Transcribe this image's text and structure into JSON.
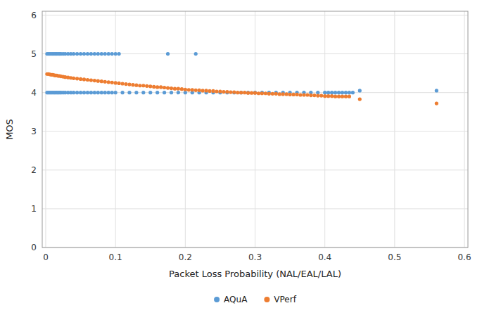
{
  "chart_data": {
    "type": "scatter",
    "xlabel": "Packet Loss Probability (NAL/EAL/LAL)",
    "ylabel": "MOS",
    "xlim": [
      -0.005,
      0.605
    ],
    "ylim": [
      0,
      6.1
    ],
    "xticks": [
      0,
      0.1,
      0.2,
      0.3,
      0.4,
      0.5,
      0.6
    ],
    "yticks": [
      0,
      1,
      2,
      3,
      4,
      5,
      6
    ],
    "grid": true,
    "legend": "bottom",
    "series": [
      {
        "name": "AQuA",
        "color": "#5B9BD5",
        "x": [
          0.002,
          0.004,
          0.006,
          0.008,
          0.01,
          0.012,
          0.014,
          0.016,
          0.018,
          0.02,
          0.022,
          0.025,
          0.028,
          0.032,
          0.036,
          0.04,
          0.045,
          0.05,
          0.055,
          0.06,
          0.065,
          0.07,
          0.075,
          0.08,
          0.085,
          0.09,
          0.095,
          0.1,
          0.105,
          0.002,
          0.004,
          0.006,
          0.008,
          0.01,
          0.012,
          0.014,
          0.016,
          0.018,
          0.02,
          0.022,
          0.025,
          0.028,
          0.032,
          0.036,
          0.04,
          0.045,
          0.05,
          0.055,
          0.06,
          0.065,
          0.07,
          0.075,
          0.08,
          0.085,
          0.09,
          0.095,
          0.1,
          0.11,
          0.12,
          0.13,
          0.14,
          0.15,
          0.16,
          0.17,
          0.18,
          0.19,
          0.2,
          0.21,
          0.22,
          0.23,
          0.24,
          0.25,
          0.26,
          0.27,
          0.28,
          0.29,
          0.3,
          0.31,
          0.32,
          0.33,
          0.34,
          0.35,
          0.36,
          0.37,
          0.38,
          0.39,
          0.4,
          0.405,
          0.41,
          0.415,
          0.42,
          0.425,
          0.43,
          0.435,
          0.44,
          0.175,
          0.215,
          0.45,
          0.56
        ],
        "values": [
          5.0,
          5.0,
          5.0,
          5.0,
          5.0,
          5.0,
          5.0,
          5.0,
          5.0,
          5.0,
          5.0,
          5.0,
          5.0,
          5.0,
          5.0,
          5.0,
          5.0,
          5.0,
          5.0,
          5.0,
          5.0,
          5.0,
          5.0,
          5.0,
          5.0,
          5.0,
          5.0,
          5.0,
          5.0,
          4.0,
          4.0,
          4.0,
          4.0,
          4.0,
          4.0,
          4.0,
          4.0,
          4.0,
          4.0,
          4.0,
          4.0,
          4.0,
          4.0,
          4.0,
          4.0,
          4.0,
          4.0,
          4.0,
          4.0,
          4.0,
          4.0,
          4.0,
          4.0,
          4.0,
          4.0,
          4.0,
          4.0,
          4.0,
          4.0,
          4.0,
          4.0,
          4.0,
          4.0,
          4.0,
          4.0,
          4.0,
          4.0,
          4.0,
          4.0,
          4.0,
          4.0,
          4.0,
          4.0,
          4.0,
          4.0,
          4.0,
          4.0,
          4.0,
          4.0,
          4.0,
          4.0,
          4.0,
          4.0,
          4.0,
          4.0,
          4.0,
          4.0,
          4.0,
          4.0,
          4.0,
          4.0,
          4.0,
          4.0,
          4.0,
          4.0,
          5.0,
          5.0,
          4.05,
          4.05
        ]
      },
      {
        "name": "VPerf",
        "color": "#ED7D31",
        "x": [
          0.002,
          0.004,
          0.006,
          0.008,
          0.01,
          0.012,
          0.014,
          0.016,
          0.018,
          0.02,
          0.022,
          0.025,
          0.028,
          0.032,
          0.036,
          0.04,
          0.045,
          0.05,
          0.055,
          0.06,
          0.065,
          0.07,
          0.075,
          0.08,
          0.085,
          0.09,
          0.095,
          0.1,
          0.105,
          0.11,
          0.115,
          0.12,
          0.125,
          0.13,
          0.135,
          0.14,
          0.145,
          0.15,
          0.155,
          0.16,
          0.165,
          0.17,
          0.175,
          0.18,
          0.185,
          0.19,
          0.195,
          0.2,
          0.205,
          0.21,
          0.215,
          0.22,
          0.225,
          0.23,
          0.235,
          0.24,
          0.245,
          0.25,
          0.255,
          0.26,
          0.265,
          0.27,
          0.275,
          0.28,
          0.285,
          0.29,
          0.295,
          0.3,
          0.305,
          0.31,
          0.315,
          0.32,
          0.325,
          0.33,
          0.335,
          0.34,
          0.345,
          0.35,
          0.355,
          0.36,
          0.365,
          0.37,
          0.375,
          0.38,
          0.385,
          0.39,
          0.395,
          0.4,
          0.405,
          0.41,
          0.415,
          0.42,
          0.425,
          0.43,
          0.435,
          0.45,
          0.56
        ],
        "values": [
          4.48,
          4.48,
          4.47,
          4.46,
          4.46,
          4.45,
          4.44,
          4.44,
          4.43,
          4.43,
          4.42,
          4.41,
          4.4,
          4.39,
          4.38,
          4.37,
          4.36,
          4.35,
          4.34,
          4.33,
          4.32,
          4.31,
          4.3,
          4.29,
          4.28,
          4.27,
          4.26,
          4.25,
          4.24,
          4.23,
          4.22,
          4.21,
          4.2,
          4.19,
          4.18,
          4.18,
          4.17,
          4.16,
          4.15,
          4.14,
          4.14,
          4.13,
          4.12,
          4.11,
          4.1,
          4.1,
          4.09,
          4.08,
          4.07,
          4.07,
          4.06,
          4.06,
          4.05,
          4.05,
          4.04,
          4.04,
          4.03,
          4.03,
          4.02,
          4.02,
          4.01,
          4.01,
          4.0,
          4.0,
          4.0,
          3.99,
          3.99,
          3.99,
          3.98,
          3.98,
          3.98,
          3.97,
          3.97,
          3.97,
          3.96,
          3.96,
          3.96,
          3.95,
          3.95,
          3.95,
          3.94,
          3.94,
          3.94,
          3.93,
          3.93,
          3.92,
          3.92,
          3.91,
          3.91,
          3.91,
          3.9,
          3.9,
          3.9,
          3.9,
          3.9,
          3.83,
          3.72
        ]
      }
    ]
  }
}
